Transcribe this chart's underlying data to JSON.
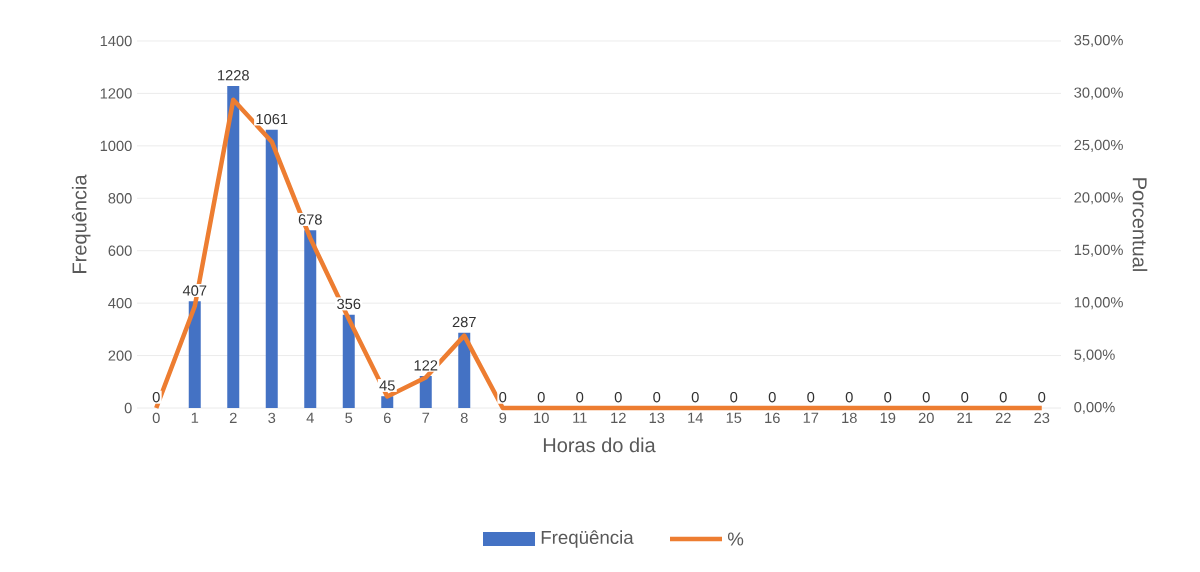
{
  "chart_data": {
    "type": "bar",
    "xlabel": "Horas do dia",
    "ylabel": "Frequência",
    "y2label": "Porcentual",
    "categories": [
      "0",
      "1",
      "2",
      "3",
      "4",
      "5",
      "6",
      "7",
      "8",
      "9",
      "10",
      "11",
      "12",
      "13",
      "14",
      "15",
      "16",
      "17",
      "18",
      "19",
      "20",
      "21",
      "22",
      "23"
    ],
    "series": [
      {
        "name": "Freqüência",
        "color": "#4472c4",
        "values": [
          0,
          407,
          1228,
          1061,
          678,
          356,
          45,
          122,
          287,
          0,
          0,
          0,
          0,
          0,
          0,
          0,
          0,
          0,
          0,
          0,
          0,
          0,
          0,
          0
        ],
        "value_labels": [
          "0",
          "407",
          "1228",
          "1061",
          "678",
          "356",
          "45",
          "122",
          "287",
          "0",
          "0",
          "0",
          "0",
          "0",
          "0",
          "0",
          "0",
          "0",
          "0",
          "0",
          "0",
          "0",
          "0",
          "0"
        ]
      },
      {
        "name": "%",
        "type": "line",
        "axis": "y2",
        "color": "#ed7d31",
        "values": [
          0,
          9.7,
          29.4,
          25.4,
          16.2,
          8.5,
          1.1,
          2.9,
          6.9,
          0,
          0,
          0,
          0,
          0,
          0,
          0,
          0,
          0,
          0,
          0,
          0,
          0,
          0,
          0
        ]
      }
    ],
    "ylim": [
      0,
      1400
    ],
    "yticks": [
      0,
      200,
      400,
      600,
      800,
      1000,
      1200,
      1400
    ],
    "y2lim": [
      0,
      35
    ],
    "y2ticks": [
      {
        "value": 0,
        "label": "0,00%"
      },
      {
        "value": 5,
        "label": "5,00%"
      },
      {
        "value": 10,
        "label": "10,00%"
      },
      {
        "value": 15,
        "label": "15,00%"
      },
      {
        "value": 20,
        "label": "20,00%"
      },
      {
        "value": 25,
        "label": "25,00%"
      },
      {
        "value": 30,
        "label": "30,00%"
      },
      {
        "value": 35,
        "label": "35,00%"
      }
    ],
    "grid": "y",
    "legend": "bottom",
    "marker": "none",
    "line_style": "solid"
  }
}
